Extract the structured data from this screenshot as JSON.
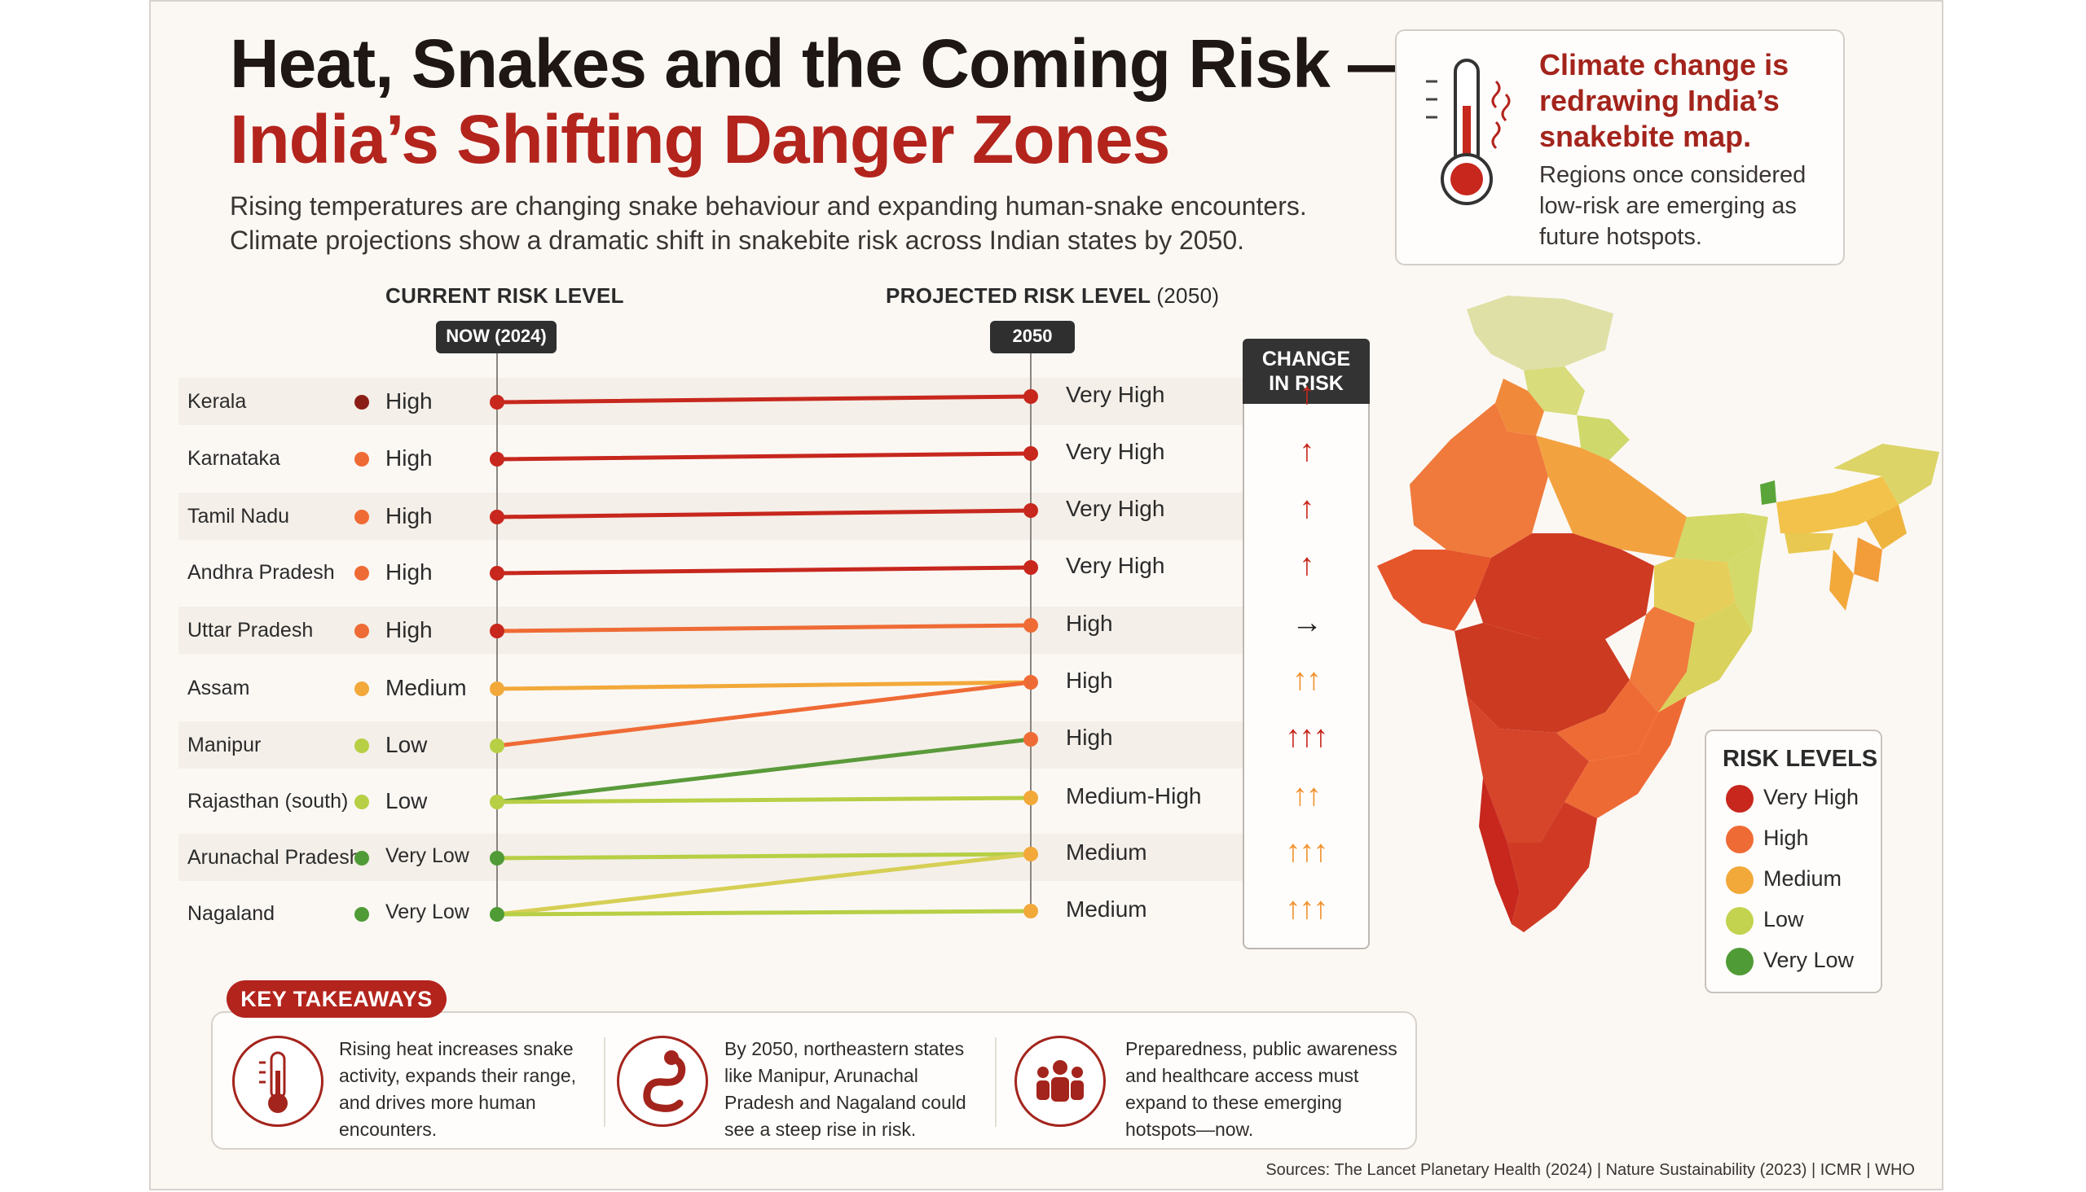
{
  "title": {
    "line1": "Heat, Snakes and the Coming Risk —",
    "line2": "India’s Shifting Danger Zones"
  },
  "subtitle": [
    "Rising temperatures are changing snake behaviour and expanding human-snake encounters.",
    "Climate projections show a dramatic shift in snakebite risk across Indian states by 2050."
  ],
  "callout": {
    "heading": "Climate change is redrawing India’s snakebite map.",
    "body": "Regions once considered low-risk are emerging as future hotspots."
  },
  "headers": {
    "current": "CURRENT RISK LEVEL",
    "projected": "PROJECTED RISK LEVEL",
    "projected_year": "(2050)",
    "now_pill": "NOW (2024)",
    "future_pill": "2050",
    "change_line1": "CHANGE",
    "change_line2": "IN RISK"
  },
  "colors": {
    "Very High": "#c7271d",
    "High": "#ef6b35",
    "Medium": "#f2a93a",
    "Medium-High": "#f2a93a",
    "Low": "#b7cf45",
    "Very Low": "#4f9b36",
    "current_high_kerala": "#8a1e17",
    "arrow_red": "#c7271d",
    "arrow_orange": "#f0922d",
    "arrow_black": "#222222",
    "accent": "#b3241d"
  },
  "chart_data": {
    "type": "slope",
    "title": "Heat, Snakes and the Coming Risk — India’s Shifting Danger Zones",
    "x": [
      "NOW (2024)",
      "2050"
    ],
    "levels": [
      "Very Low",
      "Low",
      "Medium",
      "Medium-High",
      "High",
      "Very High"
    ],
    "rows": [
      {
        "state": "Kerala",
        "current": "High",
        "projected": "Very High",
        "change": "↑",
        "change_color": "arrow_red"
      },
      {
        "state": "Karnataka",
        "current": "High",
        "projected": "Very High",
        "change": "↑",
        "change_color": "arrow_red"
      },
      {
        "state": "Tamil Nadu",
        "current": "High",
        "projected": "Very High",
        "change": "↑",
        "change_color": "arrow_red"
      },
      {
        "state": "Andhra Pradesh",
        "current": "High",
        "projected": "Very High",
        "change": "↑",
        "change_color": "arrow_red"
      },
      {
        "state": "Uttar Pradesh",
        "current": "High",
        "projected": "High",
        "change": "→",
        "change_color": "arrow_black"
      },
      {
        "state": "Assam",
        "current": "Medium",
        "projected": "High",
        "change": "↑↑",
        "change_color": "arrow_orange"
      },
      {
        "state": "Manipur",
        "current": "Low",
        "projected": "High",
        "change": "↑↑↑",
        "change_color": "arrow_red"
      },
      {
        "state": "Rajasthan (south)",
        "current": "Low",
        "projected": "Medium-High",
        "change": "↑↑",
        "change_color": "arrow_orange"
      },
      {
        "state": "Arunachal Pradesh",
        "current": "Very Low",
        "projected": "Medium",
        "change": "↑↑↑",
        "change_color": "arrow_orange"
      },
      {
        "state": "Nagaland",
        "current": "Very Low",
        "projected": "Medium",
        "change": "↑↑↑",
        "change_color": "arrow_orange"
      }
    ],
    "connections": [
      {
        "from": 0,
        "to": 0,
        "color": "#c7271d"
      },
      {
        "from": 1,
        "to": 1,
        "color": "#c7271d"
      },
      {
        "from": 2,
        "to": 2,
        "color": "#c7271d"
      },
      {
        "from": 3,
        "to": 3,
        "color": "#c7271d"
      },
      {
        "from": 4,
        "to": 4,
        "color": "#ef6b35"
      },
      {
        "from": 5,
        "to": 5,
        "color": "#f2a93a"
      },
      {
        "from": 6,
        "to": 5,
        "color": "#ef6b35"
      },
      {
        "from": 7,
        "to": 6,
        "color": "#5a9a3a"
      },
      {
        "from": 7,
        "to": 7,
        "color": "#b7cf45"
      },
      {
        "from": 8,
        "to": 8,
        "color": "#b7cf45"
      },
      {
        "from": 9,
        "to": 8,
        "color": "#d6cf55"
      },
      {
        "from": 9,
        "to": 9,
        "color": "#b7cf45"
      }
    ]
  },
  "legend": {
    "title": "RISK LEVELS",
    "items": [
      "Very High",
      "High",
      "Medium",
      "Low",
      "Very Low"
    ]
  },
  "takeaways": {
    "badge": "KEY TAKEAWAYS",
    "items": [
      "Rising heat increases snake activity, expands their range, and drives more human encounters.",
      "By 2050, northeastern states like Manipur, Arunachal Pradesh and Nagaland could see a steep rise in risk.",
      "Preparedness, public awareness and healthcare access must expand to these emerging hotspots—now."
    ]
  },
  "sources": "Sources: The Lancet Planetary Health (2024)  |  Nature Sustainability (2023)  |  ICMR  |  WHO"
}
